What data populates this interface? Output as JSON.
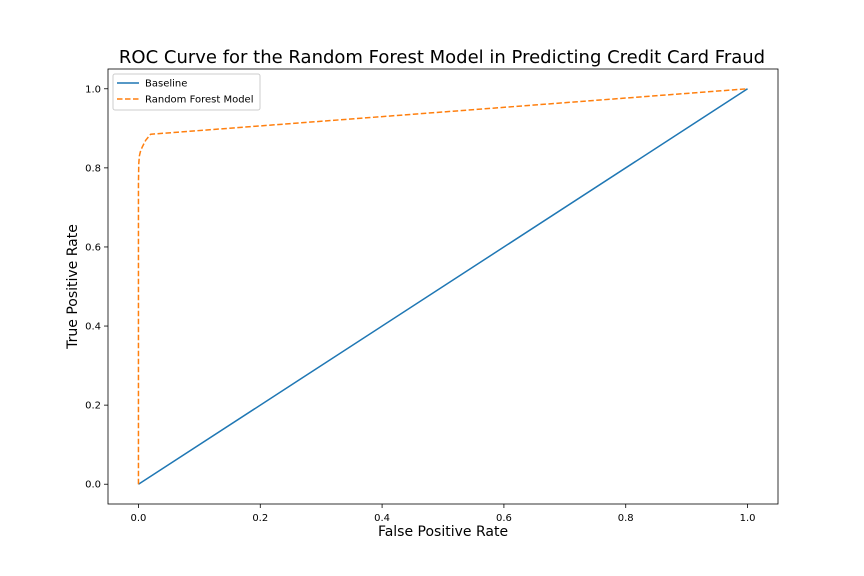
{
  "chart_data": {
    "type": "line",
    "title": "ROC Curve for the Random Forest Model in Predicting Credit Card Fraud",
    "xlabel": "False Positive Rate",
    "ylabel": "True Positive Rate",
    "xlim": [
      -0.05,
      1.05
    ],
    "ylim": [
      -0.05,
      1.05
    ],
    "xticks": [
      0.0,
      0.2,
      0.4,
      0.6,
      0.8,
      1.0
    ],
    "xtick_labels": [
      "0.0",
      "0.2",
      "0.4",
      "0.6",
      "0.8",
      "1.0"
    ],
    "yticks": [
      0.0,
      0.2,
      0.4,
      0.6,
      0.8,
      1.0
    ],
    "ytick_labels": [
      "0.0",
      "0.2",
      "0.4",
      "0.6",
      "0.8",
      "1.0"
    ],
    "grid": false,
    "legend_position": "top-left",
    "series": [
      {
        "name": "Baseline",
        "color": "#1f77b4",
        "style": "solid",
        "x": [
          0.0,
          1.0
        ],
        "y": [
          0.0,
          1.0
        ]
      },
      {
        "name": "Random Forest Model",
        "color": "#ff7f0e",
        "style": "dashed",
        "x": [
          0.0,
          0.0,
          0.0005,
          0.0015,
          0.003,
          0.006,
          0.012,
          0.02,
          1.0
        ],
        "y": [
          0.0,
          0.76,
          0.81,
          0.83,
          0.84,
          0.852,
          0.87,
          0.885,
          1.0
        ]
      }
    ]
  }
}
